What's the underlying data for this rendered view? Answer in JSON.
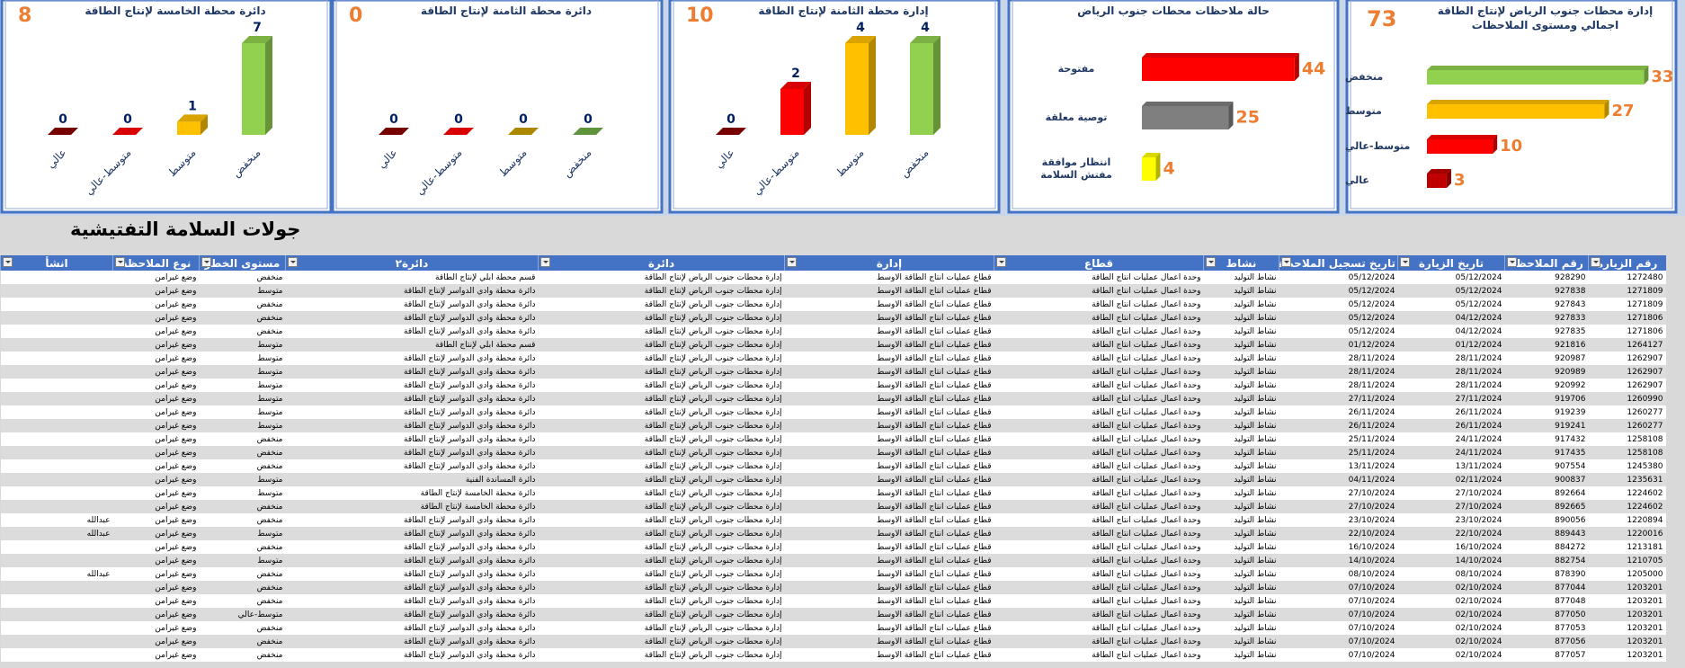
{
  "chart_data": [
    {
      "type": "hbar",
      "title": "إدارة محطات جنوب الرياض لإنتاج الطاقة اجمالي ومستوى الملاحظات",
      "total": 73,
      "categories": [
        "منخفض",
        "متوسط",
        "متوسط-عالي",
        "عالي"
      ],
      "values": [
        33,
        27,
        10,
        3
      ],
      "colors": [
        "#92d050",
        "#ffc000",
        "#ff0000",
        "#c00000"
      ],
      "xlim": [
        0,
        35
      ]
    },
    {
      "type": "hbar",
      "title": "حالة ملاحظات محطات جنوب الرياض",
      "categories": [
        "مفتوحة",
        "توصية معلقة",
        "انتظار موافقة مفتش السلامة"
      ],
      "values": [
        44,
        25,
        4
      ],
      "colors": [
        "#ff0000",
        "#7f7f7f",
        "#ffff00"
      ],
      "xlim": [
        0,
        50
      ]
    },
    {
      "type": "bar",
      "title": "إدارة محطة الثامنة لإنتاج الطاقة",
      "total": 10,
      "categories": [
        "عالي",
        "متوسط-عالي",
        "متوسط",
        "منخفض"
      ],
      "values": [
        0,
        2,
        4,
        4
      ],
      "colors": [
        "#8b0000",
        "#ff0000",
        "#ffc000",
        "#92d050"
      ],
      "ylim": [
        0,
        4
      ]
    },
    {
      "type": "bar",
      "title": "دائرة محطة الثامنة لإنتاج الطاقة",
      "total": 0,
      "categories": [
        "عالي",
        "متوسط-عالي",
        "متوسط",
        "منخفض"
      ],
      "values": [
        0,
        0,
        0,
        0
      ],
      "colors": [
        "#8b0000",
        "#ff0000",
        "#c9a000",
        "#70ad47"
      ],
      "ylim": [
        0,
        1
      ]
    },
    {
      "type": "bar",
      "title": "دائرة محطة الخامسة لإنتاج الطاقة",
      "total": 8,
      "categories": [
        "عالي",
        "متوسط-عالي",
        "متوسط",
        "منخفض"
      ],
      "values": [
        0,
        0,
        1,
        7
      ],
      "colors": [
        "#8b0000",
        "#ff0000",
        "#ffc000",
        "#92d050"
      ],
      "ylim": [
        0,
        7
      ]
    }
  ],
  "sheet_title": "جولات السلامة التفتيشية",
  "table": {
    "headers": [
      "رقم الزيارة",
      "رقم الملاحظة",
      "تاريخ الزيارة",
      "تاريخ تسجيل الملاحظة",
      "نشاط",
      "قطاع",
      "إدارة",
      "دائرة",
      "دائرة٢",
      "مستوى الخطر",
      "نوع الملاحظة",
      "انشأ"
    ],
    "rows": [
      [
        1272480,
        928290,
        "05/12/2024",
        "05/12/2024",
        "نشاط التوليد",
        "وحدة اعمال عمليات انتاج الطاقة",
        "قطاع عمليات انتاج الطاقة الاوسط",
        "إدارة محطات جنوب الرياض لإنتاج الطاقة",
        "قسم محطة ابلي لإنتاج الطاقة",
        "منخفض",
        "وضع غيرامن",
        null
      ],
      [
        1271809,
        927838,
        "05/12/2024",
        "05/12/2024",
        "نشاط التوليد",
        "وحدة اعمال عمليات انتاج الطاقة",
        "قطاع عمليات انتاج الطاقة الاوسط",
        "إدارة محطات جنوب الرياض لإنتاج الطاقة",
        "دائرة محطة وادي الدواسر لإنتاج الطاقة",
        "متوسط",
        "وضع غيرامن",
        null
      ],
      [
        1271809,
        927843,
        "05/12/2024",
        "05/12/2024",
        "نشاط التوليد",
        "وحدة اعمال عمليات انتاج الطاقة",
        "قطاع عمليات انتاج الطاقة الاوسط",
        "إدارة محطات جنوب الرياض لإنتاج الطاقة",
        "دائرة محطة وادي الدواسر لإنتاج الطاقة",
        "منخفض",
        "وضع غيرامن",
        null
      ],
      [
        1271806,
        927833,
        "04/12/2024",
        "05/12/2024",
        "نشاط التوليد",
        "وحدة اعمال عمليات انتاج الطاقة",
        "قطاع عمليات انتاج الطاقة الاوسط",
        "إدارة محطات جنوب الرياض لإنتاج الطاقة",
        "دائرة محطة وادي الدواسر لإنتاج الطاقة",
        "منخفض",
        "وضع غيرامن",
        null
      ],
      [
        1271806,
        927835,
        "04/12/2024",
        "05/12/2024",
        "نشاط التوليد",
        "وحدة اعمال عمليات انتاج الطاقة",
        "قطاع عمليات انتاج الطاقة الاوسط",
        "إدارة محطات جنوب الرياض لإنتاج الطاقة",
        "دائرة محطة وادي الدواسر لإنتاج الطاقة",
        "منخفض",
        "وضع غيرامن",
        null
      ],
      [
        1264127,
        921816,
        "01/12/2024",
        "01/12/2024",
        "نشاط التوليد",
        "وحدة اعمال عمليات انتاج الطاقة",
        "قطاع عمليات انتاج الطاقة الاوسط",
        "إدارة محطات جنوب الرياض لإنتاج الطاقة",
        "قسم محطة ابلي لإنتاج الطاقة",
        "متوسط",
        "وضع غيرامن",
        null
      ],
      [
        1262907,
        920987,
        "28/11/2024",
        "28/11/2024",
        "نشاط التوليد",
        "وحدة اعمال عمليات انتاج الطاقة",
        "قطاع عمليات انتاج الطاقة الاوسط",
        "إدارة محطات جنوب الرياض لإنتاج الطاقة",
        "دائرة محطة وادي الدواسر لإنتاج الطاقة",
        "متوسط",
        "وضع غيرامن",
        null
      ],
      [
        1262907,
        920989,
        "28/11/2024",
        "28/11/2024",
        "نشاط التوليد",
        "وحدة اعمال عمليات انتاج الطاقة",
        "قطاع عمليات انتاج الطاقة الاوسط",
        "إدارة محطات جنوب الرياض لإنتاج الطاقة",
        "دائرة محطة وادي الدواسر لإنتاج الطاقة",
        "متوسط",
        "وضع غيرامن",
        null
      ],
      [
        1262907,
        920992,
        "28/11/2024",
        "28/11/2024",
        "نشاط التوليد",
        "وحدة اعمال عمليات انتاج الطاقة",
        "قطاع عمليات انتاج الطاقة الاوسط",
        "إدارة محطات جنوب الرياض لإنتاج الطاقة",
        "دائرة محطة وادي الدواسر لإنتاج الطاقة",
        "متوسط",
        "وضع غيرامن",
        null
      ],
      [
        1260990,
        919706,
        "27/11/2024",
        "27/11/2024",
        "نشاط التوليد",
        "وحدة اعمال عمليات انتاج الطاقة",
        "قطاع عمليات انتاج الطاقة الاوسط",
        "إدارة محطات جنوب الرياض لإنتاج الطاقة",
        "دائرة محطة وادي الدواسر لإنتاج الطاقة",
        "متوسط",
        "وضع غيرامن",
        null
      ],
      [
        1260277,
        919239,
        "26/11/2024",
        "26/11/2024",
        "نشاط التوليد",
        "وحدة اعمال عمليات انتاج الطاقة",
        "قطاع عمليات انتاج الطاقة الاوسط",
        "إدارة محطات جنوب الرياض لإنتاج الطاقة",
        "دائرة محطة وادي الدواسر لإنتاج الطاقة",
        "متوسط",
        "وضع غيرامن",
        null
      ],
      [
        1260277,
        919241,
        "26/11/2024",
        "26/11/2024",
        "نشاط التوليد",
        "وحدة اعمال عمليات انتاج الطاقة",
        "قطاع عمليات انتاج الطاقة الاوسط",
        "إدارة محطات جنوب الرياض لإنتاج الطاقة",
        "دائرة محطة وادي الدواسر لإنتاج الطاقة",
        "متوسط",
        "وضع غيرامن",
        null
      ],
      [
        1258108,
        917432,
        "24/11/2024",
        "25/11/2024",
        "نشاط التوليد",
        "وحدة اعمال عمليات انتاج الطاقة",
        "قطاع عمليات انتاج الطاقة الاوسط",
        "إدارة محطات جنوب الرياض لإنتاج الطاقة",
        "دائرة محطة وادي الدواسر لإنتاج الطاقة",
        "منخفض",
        "وضع غيرامن",
        null
      ],
      [
        1258108,
        917435,
        "24/11/2024",
        "25/11/2024",
        "نشاط التوليد",
        "وحدة اعمال عمليات انتاج الطاقة",
        "قطاع عمليات انتاج الطاقة الاوسط",
        "إدارة محطات جنوب الرياض لإنتاج الطاقة",
        "دائرة محطة وادي الدواسر لإنتاج الطاقة",
        "منخفض",
        "وضع غيرامن",
        null
      ],
      [
        1245380,
        907554,
        "13/11/2024",
        "13/11/2024",
        "نشاط التوليد",
        "وحدة اعمال عمليات انتاج الطاقة",
        "قطاع عمليات انتاج الطاقة الاوسط",
        "إدارة محطات جنوب الرياض لإنتاج الطاقة",
        "دائرة محطة وادي الدواسر لإنتاج الطاقة",
        "منخفض",
        "وضع غيرامن",
        null
      ],
      [
        1235631,
        900837,
        "02/11/2024",
        "04/11/2024",
        "نشاط التوليد",
        "وحدة اعمال عمليات انتاج الطاقة",
        "قطاع عمليات انتاج الطاقة الاوسط",
        "إدارة محطات جنوب الرياض لإنتاج الطاقة",
        "دائرة المساندة الفنية",
        "متوسط",
        "وضع غيرامن",
        null
      ],
      [
        1224602,
        892664,
        "27/10/2024",
        "27/10/2024",
        "نشاط التوليد",
        "وحدة اعمال عمليات انتاج الطاقة",
        "قطاع عمليات انتاج الطاقة الاوسط",
        "إدارة محطات جنوب الرياض لإنتاج الطاقة",
        "دائرة محطة الخامسة لإنتاج الطاقة",
        "متوسط",
        "وضع غيرامن",
        null
      ],
      [
        1224602,
        892665,
        "27/10/2024",
        "27/10/2024",
        "نشاط التوليد",
        "وحدة اعمال عمليات انتاج الطاقة",
        "قطاع عمليات انتاج الطاقة الاوسط",
        "إدارة محطات جنوب الرياض لإنتاج الطاقة",
        "دائرة محطة الخامسة لإنتاج الطاقة",
        "منخفض",
        "وضع غيرامن",
        null
      ],
      [
        1220894,
        890056,
        "23/10/2024",
        "23/10/2024",
        "نشاط التوليد",
        "وحدة اعمال عمليات انتاج الطاقة",
        "قطاع عمليات انتاج الطاقة الاوسط",
        "إدارة محطات جنوب الرياض لإنتاج الطاقة",
        "دائرة محطة وادي الدواسر لإنتاج الطاقة",
        "منخفض",
        "وضع غيرامن",
        "عبدالله"
      ],
      [
        1220016,
        889443,
        "22/10/2024",
        "22/10/2024",
        "نشاط التوليد",
        "وحدة اعمال عمليات انتاج الطاقة",
        "قطاع عمليات انتاج الطاقة الاوسط",
        "إدارة محطات جنوب الرياض لإنتاج الطاقة",
        "دائرة محطة وادي الدواسر لإنتاج الطاقة",
        "متوسط",
        "وضع غيرامن",
        "عبدالله"
      ],
      [
        1213181,
        884272,
        "16/10/2024",
        "16/10/2024",
        "نشاط التوليد",
        "وحدة اعمال عمليات انتاج الطاقة",
        "قطاع عمليات انتاج الطاقة الاوسط",
        "إدارة محطات جنوب الرياض لإنتاج الطاقة",
        "دائرة محطة وادي الدواسر لإنتاج الطاقة",
        "منخفض",
        "وضع غيرامن",
        null
      ],
      [
        1210705,
        882754,
        "14/10/2024",
        "14/10/2024",
        "نشاط التوليد",
        "وحدة اعمال عمليات انتاج الطاقة",
        "قطاع عمليات انتاج الطاقة الاوسط",
        "إدارة محطات جنوب الرياض لإنتاج الطاقة",
        "دائرة محطة وادي الدواسر لإنتاج الطاقة",
        "متوسط",
        "وضع غيرامن",
        null
      ],
      [
        1205000,
        878390,
        "08/10/2024",
        "08/10/2024",
        "نشاط التوليد",
        "وحدة اعمال عمليات انتاج الطاقة",
        "قطاع عمليات انتاج الطاقة الاوسط",
        "إدارة محطات جنوب الرياض لإنتاج الطاقة",
        "دائرة محطة وادي الدواسر لإنتاج الطاقة",
        "منخفض",
        "وضع غيرامن",
        "عبدالله"
      ],
      [
        1203201,
        877044,
        "02/10/2024",
        "07/10/2024",
        "نشاط التوليد",
        "وحدة اعمال عمليات انتاج الطاقة",
        "قطاع عمليات انتاج الطاقة الاوسط",
        "إدارة محطات جنوب الرياض لإنتاج الطاقة",
        "دائرة محطة وادي الدواسر لإنتاج الطاقة",
        "منخفض",
        "وضع غيرامن",
        null
      ],
      [
        1203201,
        877048,
        "02/10/2024",
        "07/10/2024",
        "نشاط التوليد",
        "وحدة اعمال عمليات انتاج الطاقة",
        "قطاع عمليات انتاج الطاقة الاوسط",
        "إدارة محطات جنوب الرياض لإنتاج الطاقة",
        "دائرة محطة وادي الدواسر لإنتاج الطاقة",
        "منخفض",
        "وضع غيرامن",
        null
      ],
      [
        1203201,
        877050,
        "02/10/2024",
        "07/10/2024",
        "نشاط التوليد",
        "وحدة اعمال عمليات انتاج الطاقة",
        "قطاع عمليات انتاج الطاقة الاوسط",
        "إدارة محطات جنوب الرياض لإنتاج الطاقة",
        "دائرة محطة وادي الدواسر لإنتاج الطاقة",
        "متوسط-عالي",
        "وضع غيرامن",
        null
      ],
      [
        1203201,
        877053,
        "02/10/2024",
        "07/10/2024",
        "نشاط التوليد",
        "وحدة اعمال عمليات انتاج الطاقة",
        "قطاع عمليات انتاج الطاقة الاوسط",
        "إدارة محطات جنوب الرياض لإنتاج الطاقة",
        "دائرة محطة وادي الدواسر لإنتاج الطاقة",
        "منخفض",
        "وضع غيرامن",
        null
      ],
      [
        1203201,
        877056,
        "02/10/2024",
        "07/10/2024",
        "نشاط التوليد",
        "وحدة اعمال عمليات انتاج الطاقة",
        "قطاع عمليات انتاج الطاقة الاوسط",
        "إدارة محطات جنوب الرياض لإنتاج الطاقة",
        "دائرة محطة وادي الدواسر لإنتاج الطاقة",
        "منخفض",
        "وضع غيرامن",
        null
      ],
      [
        1203201,
        877057,
        "02/10/2024",
        "07/10/2024",
        "نشاط التوليد",
        "وحدة اعمال عمليات انتاج الطاقة",
        "قطاع عمليات انتاج الطاقة الاوسط",
        "إدارة محطات جنوب الرياض لإنتاج الطاقة",
        "دائرة محطة وادي الدواسر لإنتاج الطاقة",
        "منخفض",
        "وضع غيرامن",
        null
      ]
    ]
  }
}
